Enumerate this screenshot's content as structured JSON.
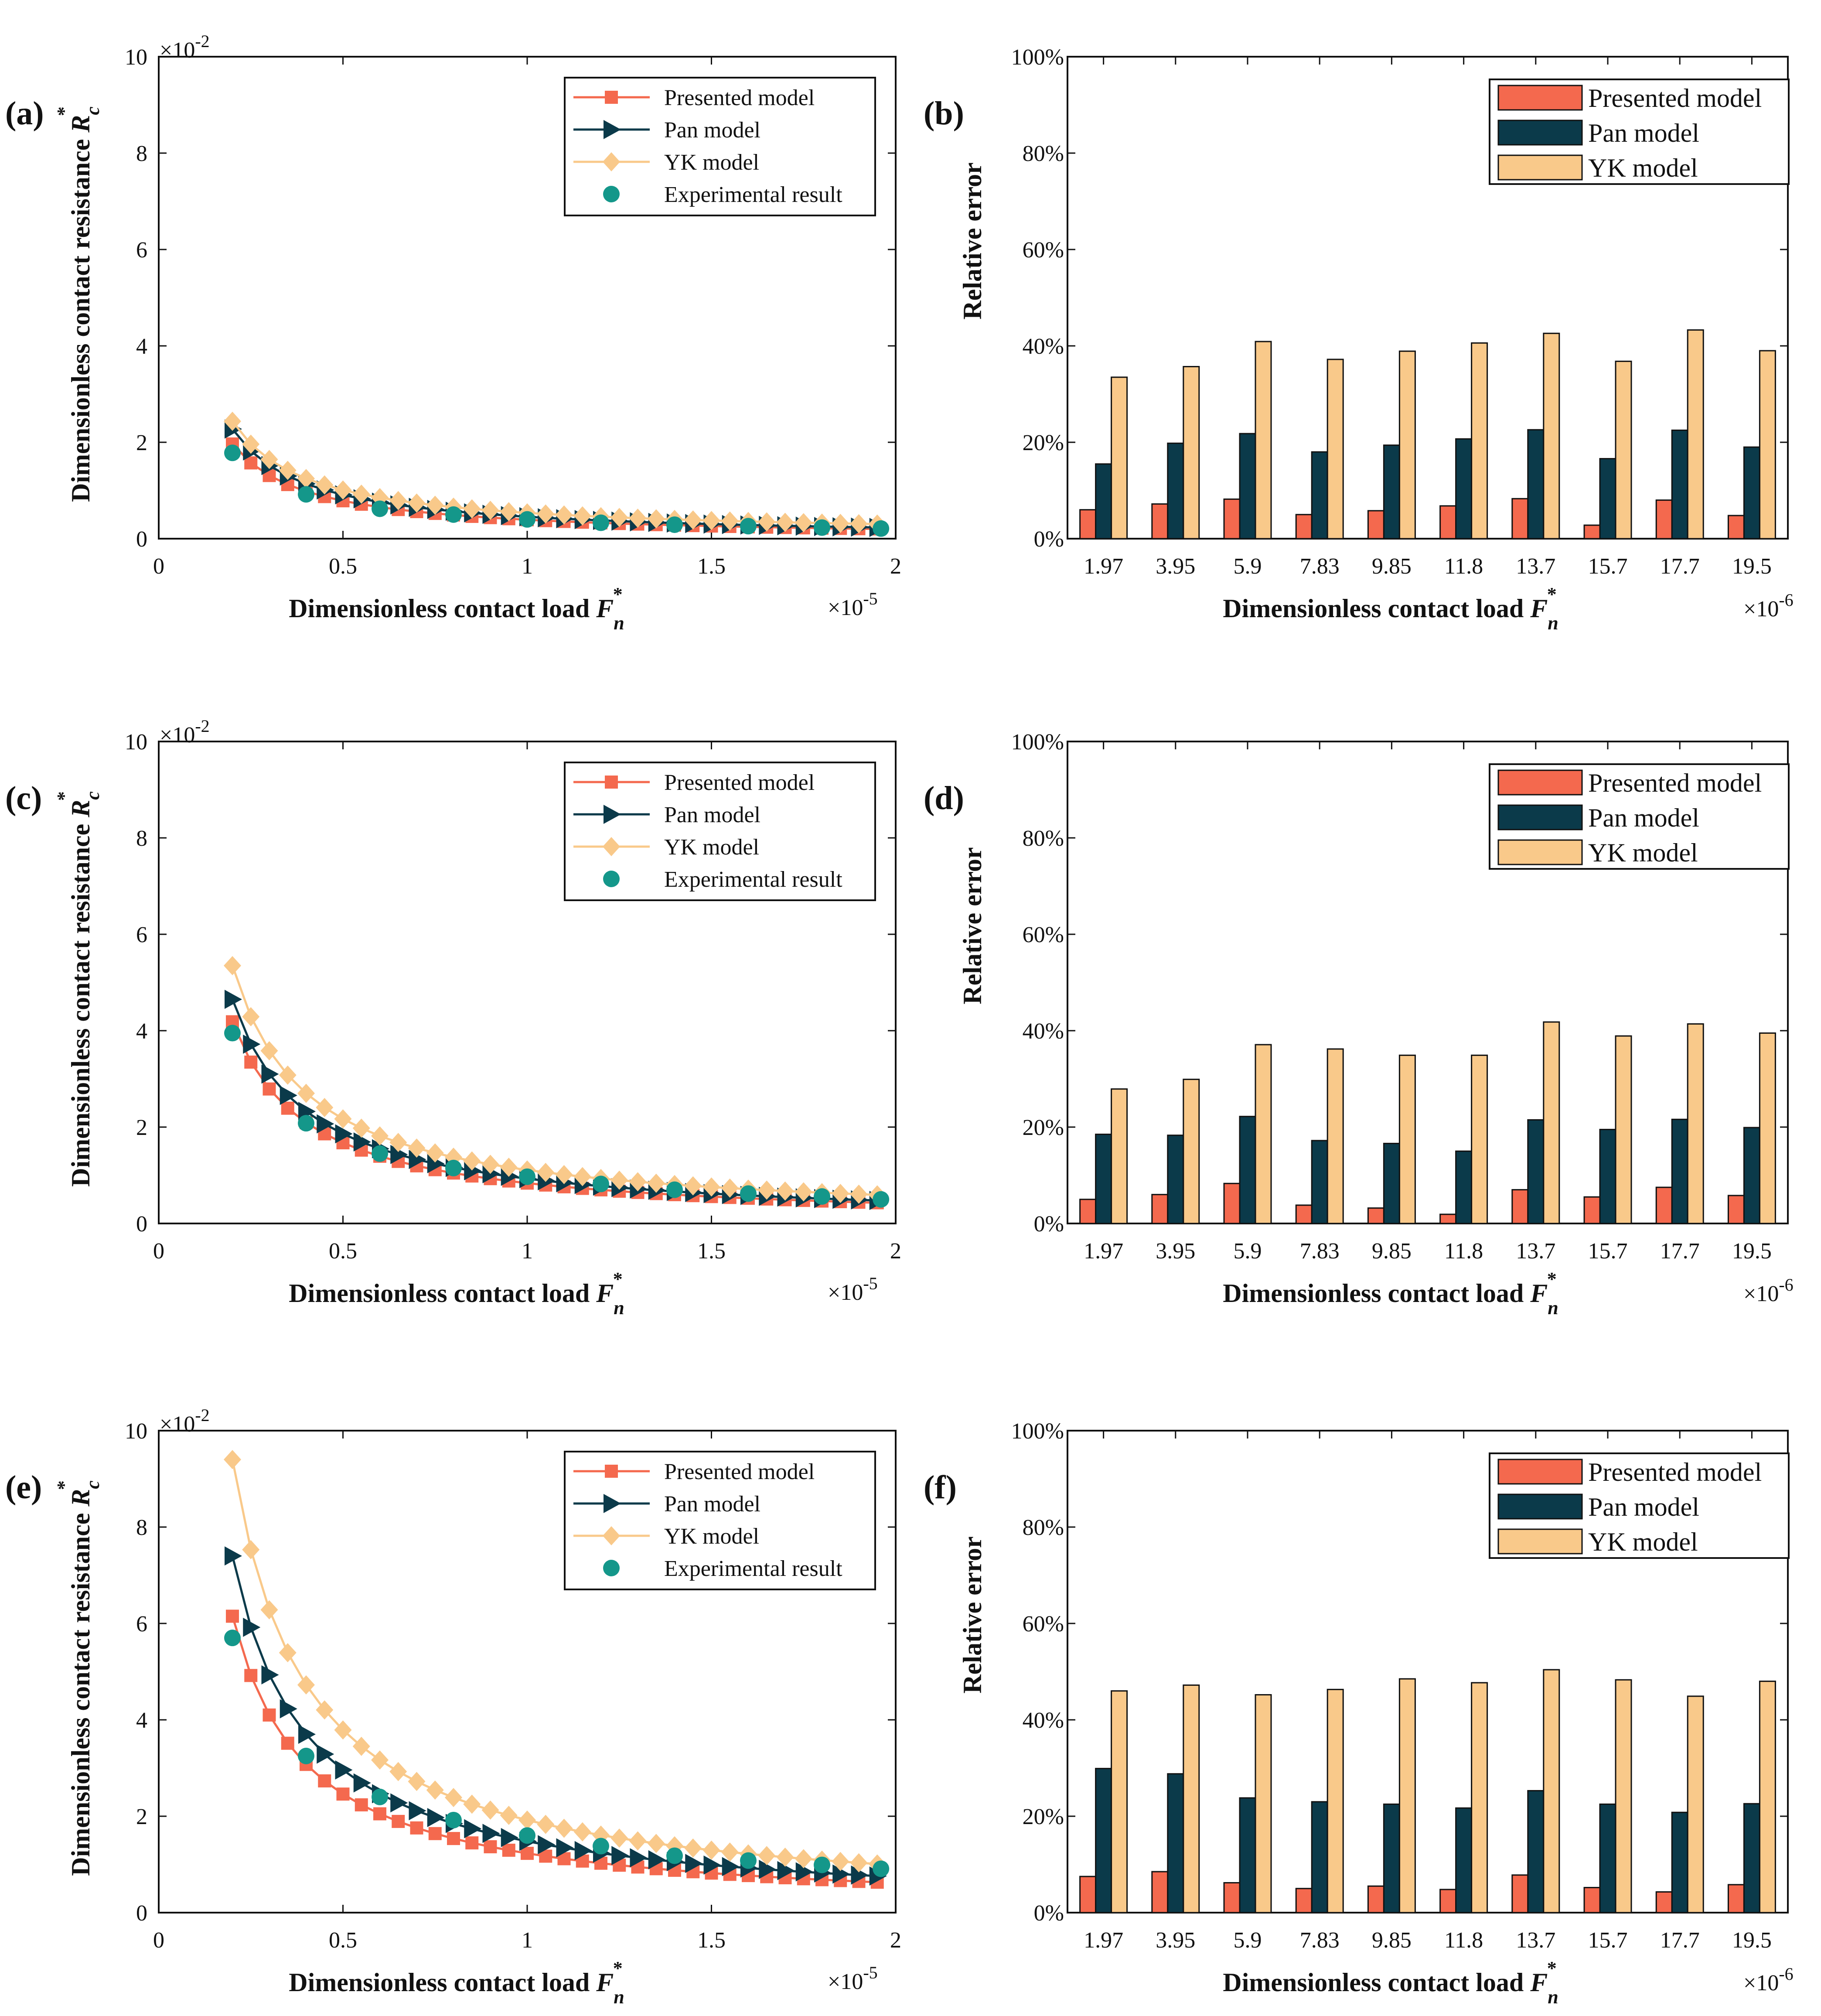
{
  "chart_data": [
    {
      "id": "a",
      "type": "line",
      "panel_label": "(a)",
      "xlabel": "Dimensionless contact load",
      "xsym": "F",
      "xsub": "n",
      "ylabel": "Dimensionless contact resistance",
      "ysym": "R",
      "ysub": "c",
      "x_multiplier": {
        "base": "×10",
        "exp": "-5"
      },
      "y_multiplier": {
        "base": "×10",
        "exp": "-2"
      },
      "xlim": [
        0,
        2
      ],
      "ylim": [
        0,
        10
      ],
      "xticks": [
        "0",
        "0.5",
        "1",
        "1.5",
        "2"
      ],
      "yticks": [
        "0",
        "2",
        "4",
        "6",
        "8",
        "10"
      ],
      "legend": [
        "Presented model",
        "Pan model",
        "YK model",
        "Experimental result"
      ],
      "series": [
        {
          "name": "Presented model",
          "color": "#F4694E",
          "marker": "square",
          "a": 0.393,
          "b": 0.0
        },
        {
          "name": "Pan model",
          "color": "#0B3A4A",
          "marker": "triangle",
          "a": 0.455,
          "b": 0.0
        },
        {
          "name": "YK model",
          "color": "#F9C98A",
          "marker": "diamond",
          "a": 0.475,
          "b": 0.06
        }
      ],
      "experimental": {
        "name": "Experimental result",
        "color": "#14978A",
        "x": [
          0.2,
          0.4,
          0.6,
          0.8,
          1.0,
          1.2,
          1.4,
          1.6,
          1.8,
          1.96
        ],
        "y": [
          1.78,
          0.92,
          0.62,
          0.5,
          0.4,
          0.33,
          0.29,
          0.26,
          0.23,
          0.21
        ]
      }
    },
    {
      "id": "b",
      "type": "bar",
      "panel_label": "(b)",
      "xlabel": "Dimensionless contact load",
      "xsym": "F",
      "xsub": "n",
      "ylabel": "Relative error",
      "x_multiplier": {
        "base": "×10",
        "exp": "-6"
      },
      "ylim": [
        0,
        100
      ],
      "yticks": [
        "0%",
        "20%",
        "40%",
        "60%",
        "80%",
        "100%"
      ],
      "categories": [
        "1.97",
        "3.95",
        "5.9",
        "7.83",
        "9.85",
        "11.8",
        "13.7",
        "15.7",
        "17.7",
        "19.5"
      ],
      "series": [
        {
          "name": "Presented model",
          "color": "#F4694E",
          "values": [
            6.0,
            7.2,
            8.2,
            5.0,
            5.8,
            6.8,
            8.3,
            2.8,
            8.0,
            4.8
          ]
        },
        {
          "name": "Pan model",
          "color": "#0B3A4A",
          "values": [
            15.5,
            19.8,
            21.8,
            18.0,
            19.4,
            20.7,
            22.6,
            16.6,
            22.5,
            19.0
          ]
        },
        {
          "name": "YK model",
          "color": "#F9C98A",
          "values": [
            33.5,
            35.7,
            40.9,
            37.2,
            38.9,
            40.6,
            42.6,
            36.8,
            43.3,
            39.0
          ]
        }
      ]
    },
    {
      "id": "c",
      "type": "line",
      "panel_label": "(c)",
      "xlabel": "Dimensionless contact load",
      "xsym": "F",
      "xsub": "n",
      "ylabel": "Dimensionless contact resistance",
      "ysym": "R",
      "ysub": "c",
      "x_multiplier": {
        "base": "×10",
        "exp": "-5"
      },
      "y_multiplier": {
        "base": "×10",
        "exp": "-2"
      },
      "xlim": [
        0,
        2
      ],
      "ylim": [
        0,
        10
      ],
      "xticks": [
        "0",
        "0.5",
        "1",
        "1.5",
        "2"
      ],
      "yticks": [
        "0",
        "2",
        "4",
        "6",
        "8",
        "10"
      ],
      "legend": [
        "Presented model",
        "Pan model",
        "YK model",
        "Experimental result"
      ],
      "series": [
        {
          "name": "Presented model",
          "color": "#F4694E",
          "marker": "square",
          "a": 0.837,
          "b": 0.0
        },
        {
          "name": "Pan model",
          "color": "#0B3A4A",
          "marker": "triangle",
          "a": 0.93,
          "b": 0.0
        },
        {
          "name": "YK model",
          "color": "#F9C98A",
          "marker": "diamond",
          "a": 1.06,
          "b": 0.05
        }
      ],
      "experimental": {
        "name": "Experimental result",
        "color": "#14978A",
        "x": [
          0.2,
          0.4,
          0.6,
          0.8,
          1.0,
          1.2,
          1.4,
          1.6,
          1.8,
          1.96
        ],
        "y": [
          3.95,
          2.08,
          1.45,
          1.15,
          0.97,
          0.82,
          0.7,
          0.62,
          0.56,
          0.5
        ]
      }
    },
    {
      "id": "d",
      "type": "bar",
      "panel_label": "(d)",
      "xlabel": "Dimensionless contact load",
      "xsym": "F",
      "xsub": "n",
      "ylabel": "Relative error",
      "x_multiplier": {
        "base": "×10",
        "exp": "-6"
      },
      "ylim": [
        0,
        100
      ],
      "yticks": [
        "0%",
        "20%",
        "40%",
        "60%",
        "80%",
        "100%"
      ],
      "categories": [
        "1.97",
        "3.95",
        "5.9",
        "7.83",
        "9.85",
        "11.8",
        "13.7",
        "15.7",
        "17.7",
        "19.5"
      ],
      "series": [
        {
          "name": "Presented model",
          "color": "#F4694E",
          "values": [
            5.0,
            6.0,
            8.3,
            3.8,
            3.2,
            1.9,
            7.0,
            5.5,
            7.5,
            5.8
          ]
        },
        {
          "name": "Pan model",
          "color": "#0B3A4A",
          "values": [
            18.5,
            18.3,
            22.2,
            17.2,
            16.6,
            15.0,
            21.5,
            19.5,
            21.6,
            19.9
          ]
        },
        {
          "name": "YK model",
          "color": "#F9C98A",
          "values": [
            27.9,
            29.9,
            37.1,
            36.2,
            34.9,
            34.9,
            41.8,
            38.9,
            41.4,
            39.5
          ]
        }
      ]
    },
    {
      "id": "e",
      "type": "line",
      "panel_label": "(e)",
      "xlabel": "Dimensionless contact load",
      "xsym": "F",
      "xsub": "n",
      "ylabel": "Dimensionless contact resistance",
      "ysym": "R",
      "ysub": "c",
      "x_multiplier": {
        "base": "×10",
        "exp": "-5"
      },
      "y_multiplier": {
        "base": "×10",
        "exp": "-2"
      },
      "xlim": [
        0,
        2
      ],
      "ylim": [
        0,
        10
      ],
      "xticks": [
        "0",
        "0.5",
        "1",
        "1.5",
        "2"
      ],
      "yticks": [
        "0",
        "2",
        "4",
        "6",
        "8",
        "10"
      ],
      "legend": [
        "Presented model",
        "Pan model",
        "YK model",
        "Experimental result"
      ],
      "series": [
        {
          "name": "Presented model",
          "color": "#F4694E",
          "marker": "square",
          "a": 1.23,
          "b": 0.0
        },
        {
          "name": "Pan model",
          "color": "#0B3A4A",
          "marker": "triangle",
          "a": 1.48,
          "b": 0.0
        },
        {
          "name": "YK model",
          "color": "#F9C98A",
          "marker": "diamond",
          "a": 1.87,
          "b": 0.05
        }
      ],
      "experimental": {
        "name": "Experimental result",
        "color": "#14978A",
        "x": [
          0.2,
          0.4,
          0.6,
          0.8,
          1.0,
          1.2,
          1.4,
          1.6,
          1.8,
          1.96
        ],
        "y": [
          5.7,
          3.25,
          2.4,
          1.92,
          1.6,
          1.38,
          1.18,
          1.08,
          0.99,
          0.91
        ]
      }
    },
    {
      "id": "f",
      "type": "bar",
      "panel_label": "(f)",
      "xlabel": "Dimensionless contact load",
      "xsym": "F",
      "xsub": "n",
      "ylabel": "Relative error",
      "x_multiplier": {
        "base": "×10",
        "exp": "-6"
      },
      "ylim": [
        0,
        100
      ],
      "yticks": [
        "0%",
        "20%",
        "40%",
        "60%",
        "80%",
        "100%"
      ],
      "categories": [
        "1.97",
        "3.95",
        "5.9",
        "7.83",
        "9.85",
        "11.8",
        "13.7",
        "15.7",
        "17.7",
        "19.5"
      ],
      "series": [
        {
          "name": "Presented model",
          "color": "#F4694E",
          "values": [
            7.5,
            8.5,
            6.2,
            5.0,
            5.5,
            4.8,
            7.8,
            5.2,
            4.3,
            5.8
          ]
        },
        {
          "name": "Pan model",
          "color": "#0B3A4A",
          "values": [
            29.9,
            28.8,
            23.8,
            23.0,
            22.5,
            21.7,
            25.3,
            22.5,
            20.8,
            22.6
          ]
        },
        {
          "name": "YK model",
          "color": "#F9C98A",
          "values": [
            46.0,
            47.2,
            45.2,
            46.3,
            48.5,
            47.7,
            50.4,
            48.3,
            44.9,
            48.0
          ]
        }
      ]
    }
  ]
}
